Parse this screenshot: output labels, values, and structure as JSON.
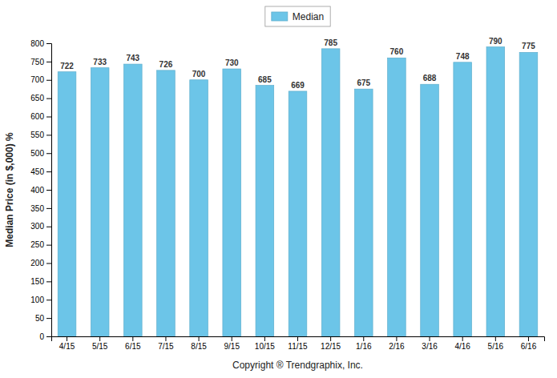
{
  "chart_data": {
    "type": "bar",
    "xlabel": "Copyright ® Trendgraphix, Inc.",
    "ylabel": "Median Price (in $,000) %",
    "categories": [
      "4/15",
      "5/15",
      "6/15",
      "7/15",
      "8/15",
      "9/15",
      "10/15",
      "11/15",
      "12/15",
      "1/16",
      "2/16",
      "3/16",
      "4/16",
      "5/16",
      "6/16"
    ],
    "series": [
      {
        "name": "Median",
        "color": "#6CC5E8",
        "values": [
          722,
          733,
          743,
          726,
          700,
          730,
          685,
          669,
          785,
          675,
          760,
          688,
          748,
          790,
          775
        ]
      }
    ],
    "ylim": [
      0,
      800
    ],
    "yticks": [
      0,
      50,
      100,
      150,
      200,
      250,
      300,
      350,
      400,
      450,
      500,
      550,
      600,
      650,
      700,
      750,
      800
    ],
    "grid": false,
    "legend": "top",
    "data_labels": true
  }
}
